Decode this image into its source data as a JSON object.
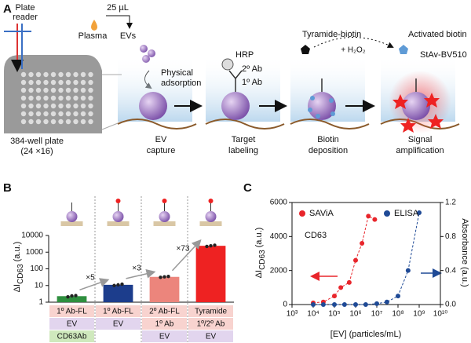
{
  "diagram": {
    "panel_label": "A",
    "plate_reader": [
      "Plate",
      "reader"
    ],
    "volume": "25 µL",
    "plasma": "Plasma",
    "evs": "EVs",
    "adsorption": [
      "Physical",
      "adsorption"
    ],
    "plate": [
      "384-well plate",
      "(24 ×16)"
    ],
    "step1": [
      "EV",
      "capture"
    ],
    "hrp": "HRP",
    "ab2": "2º Ab",
    "ab1": "1º Ab",
    "step2": [
      "Target",
      "labeling"
    ],
    "tyramide": "Tyramide-biotin",
    "h2o2": "+ H₂O₂",
    "activated": "Activated biotin",
    "step3": [
      "Biotin",
      "deposition"
    ],
    "stav": "StAv-BV510",
    "step4": [
      "Signal",
      "amplification"
    ]
  },
  "chart_data": [
    {
      "type": "bar",
      "panel_label": "B",
      "log_y": true,
      "y_label": {
        "text": "ΔI",
        "subscript": "CD63",
        "unit": "(a.u.)"
      },
      "categories": [
        null,
        null,
        null,
        null
      ],
      "values": [
        2.3,
        11,
        33,
        2400
      ],
      "replicates": [
        [
          2.1,
          2.4,
          2.5
        ],
        [
          10,
          11,
          12
        ],
        [
          31,
          33,
          35
        ],
        [
          2200,
          2400,
          2600
        ]
      ],
      "colors": [
        "#2f8f3f",
        "#1c3d8c",
        "#ec857c",
        "#ee2222"
      ],
      "annotations": [
        "×5",
        "×3",
        "×73"
      ],
      "conditions": [
        [
          "1º Ab-FL",
          "EV",
          "CD63Ab"
        ],
        [
          "1º Ab-FL",
          "EV"
        ],
        [
          "2º Ab-FL",
          "1º Ab",
          "EV"
        ],
        [
          "Tyramide",
          "1º/2º Ab",
          "EV"
        ]
      ],
      "ylim": [
        1,
        10000
      ],
      "yticks": [
        1,
        10,
        100,
        1000,
        10000
      ]
    },
    {
      "type": "scatter",
      "panel_label": "C",
      "log_x": true,
      "annotation": "CD63",
      "x_label": "[EV] (particles/mL)",
      "y_label": {
        "text": "ΔI",
        "subscript": "CD63",
        "unit": "(a.u.)"
      },
      "y2_label": "Absorbance (a.u.)",
      "series": [
        {
          "name": "SAViA",
          "color": "#e8252b",
          "x": [
            10000,
            30000,
            100000,
            200000,
            500000,
            1000000,
            2000000,
            4000000,
            8000000
          ],
          "values": [
            100,
            150,
            500,
            1000,
            1300,
            2600,
            3600,
            5200,
            5000
          ]
        },
        {
          "name": "ELISA",
          "color": "#1f4a96",
          "axis": "y2",
          "x": [
            10000,
            30000,
            100000,
            300000,
            1000000,
            3000000,
            10000000,
            30000000,
            100000000,
            300000000,
            1000000000
          ],
          "values": [
            0,
            0,
            0,
            0,
            0,
            0,
            0.01,
            0.03,
            0.1,
            0.4,
            1.08
          ]
        }
      ],
      "xlim": [
        1000,
        10000000000
      ],
      "xticks": [
        {
          "value": 1000,
          "label": "10³"
        },
        {
          "value": 10000,
          "label": "10⁴"
        },
        {
          "value": 100000,
          "label": "10⁵"
        },
        {
          "value": 1000000,
          "label": "10⁶"
        },
        {
          "value": 10000000,
          "label": "10⁷"
        },
        {
          "value": 100000000,
          "label": "10⁸"
        },
        {
          "value": 1000000000,
          "label": "10⁹"
        },
        {
          "value": 10000000000,
          "label": "10¹⁰"
        }
      ],
      "ylim": [
        0,
        6000
      ],
      "yticks": [
        0,
        2000,
        4000,
        6000
      ],
      "y2lim": [
        0,
        1.2
      ],
      "y2ticks": [
        {
          "value": 0,
          "label": "0.0"
        },
        0.4,
        0.8,
        1.2
      ]
    }
  ]
}
